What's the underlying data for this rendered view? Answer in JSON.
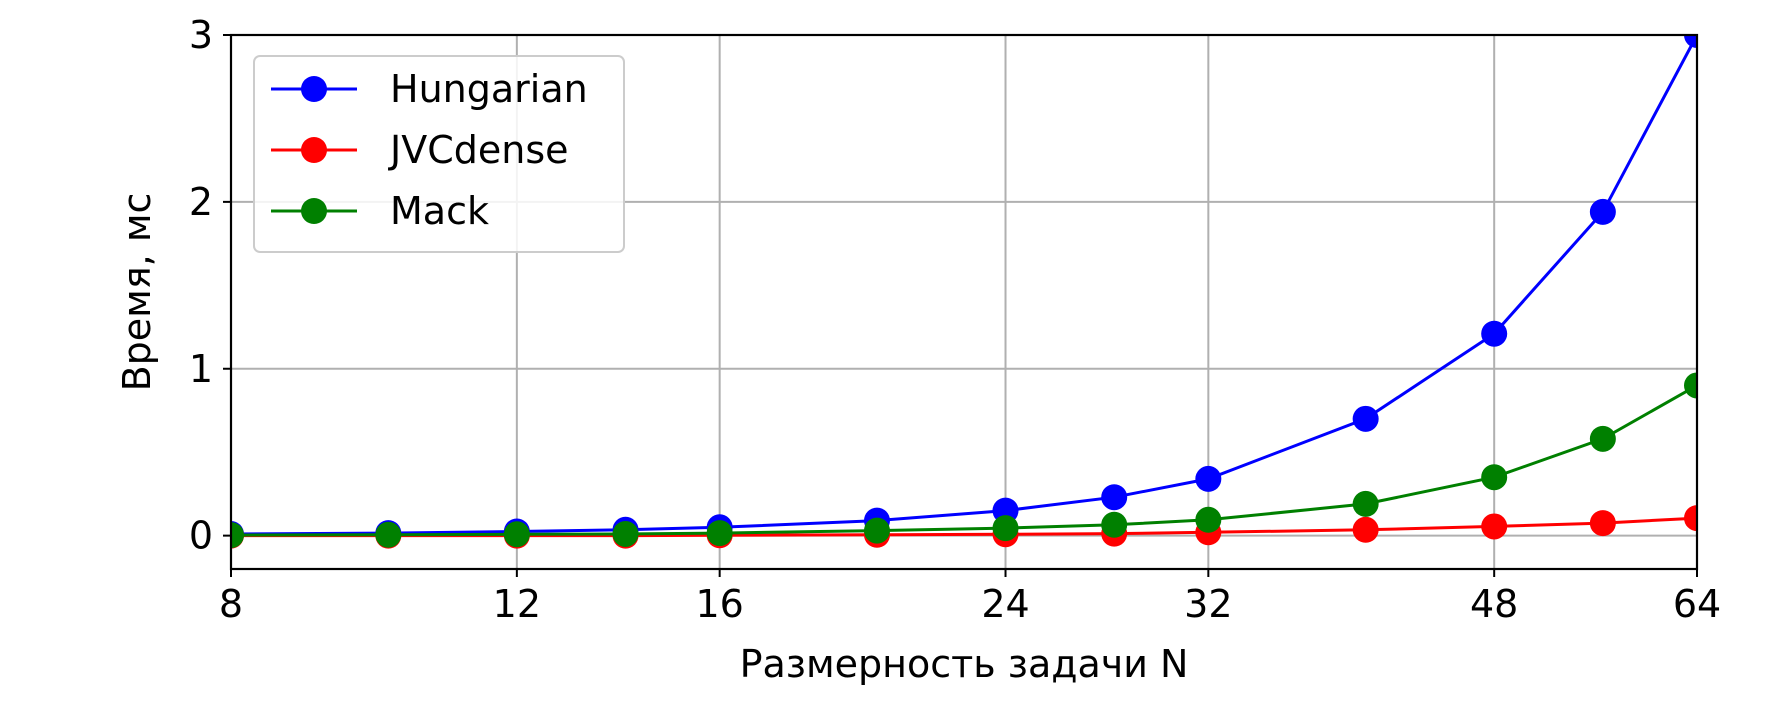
{
  "chart_data": {
    "type": "line",
    "xlabel": "Размерность задачи N",
    "ylabel": "Время, мс",
    "xscale": "log2",
    "xlim": [
      8,
      64
    ],
    "ylim": [
      -0.2,
      3
    ],
    "xticks": [
      8,
      12,
      16,
      24,
      32,
      48,
      64
    ],
    "xtick_labels": [
      "8",
      "12",
      "16",
      "24",
      "32",
      "48",
      "64"
    ],
    "yticks": [
      0,
      1,
      2,
      3
    ],
    "ytick_labels": [
      "0",
      "1",
      "2",
      "3"
    ],
    "grid": true,
    "legend_position": "top-left",
    "x": [
      8,
      10,
      12,
      14,
      16,
      20,
      24,
      28,
      32,
      40,
      48,
      56,
      64
    ],
    "series": [
      {
        "name": "Hungarian",
        "color": "#0000ff",
        "values": [
          0.01,
          0.015,
          0.025,
          0.035,
          0.05,
          0.09,
          0.15,
          0.23,
          0.34,
          0.7,
          1.21,
          1.94,
          3.0
        ]
      },
      {
        "name": "JVCdense",
        "color": "#ff0000",
        "values": [
          0.0,
          0.0,
          0.0,
          0.0,
          0.002,
          0.005,
          0.008,
          0.012,
          0.02,
          0.035,
          0.055,
          0.075,
          0.105
        ]
      },
      {
        "name": "Mack",
        "color": "#008000",
        "values": [
          0.003,
          0.005,
          0.008,
          0.01,
          0.015,
          0.03,
          0.045,
          0.065,
          0.095,
          0.19,
          0.35,
          0.58,
          0.9
        ]
      }
    ]
  }
}
